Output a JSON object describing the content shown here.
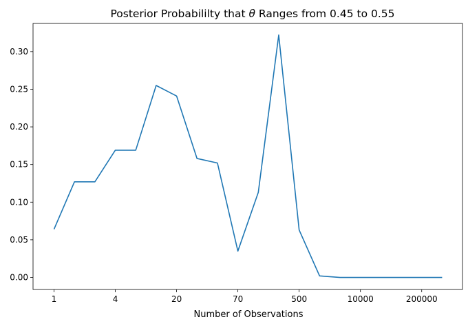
{
  "chart_data": {
    "type": "line",
    "title": "Posterior Probabililty that θ Ranges from 0.45 to 0.55",
    "title_parts": [
      "Posterior Probabililty that ",
      "θ",
      " Ranges from 0.45 to 0.55"
    ],
    "xlabel": "Number of Observations",
    "ylabel": "",
    "x_tick_labels": [
      "1",
      "4",
      "20",
      "70",
      "500",
      "10000",
      "200000"
    ],
    "y_tick_labels": [
      "0.00",
      "0.05",
      "0.10",
      "0.15",
      "0.20",
      "0.25",
      "0.30"
    ],
    "ylim": [
      -0.016,
      0.3374
    ],
    "grid": false,
    "legend": "none",
    "series": [
      {
        "color": "#1f77b4",
        "values": [
          0.064,
          0.127,
          0.127,
          0.169,
          0.169,
          0.255,
          0.241,
          0.158,
          0.152,
          0.035,
          0.113,
          0.322,
          0.063,
          0.002,
          0.0,
          0.0,
          0.0,
          0.0,
          0.0,
          0.0
        ]
      }
    ]
  }
}
